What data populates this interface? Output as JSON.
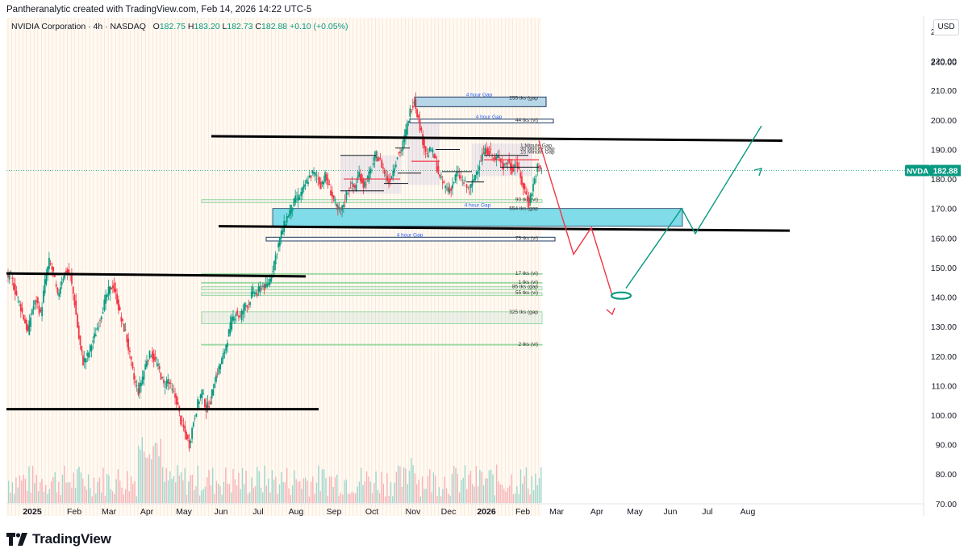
{
  "header": {
    "created_by": "Pantheranalytic created with TradingView.com, Feb 14, 2026 14:22 UTC-5",
    "symbol_line": "NVIDIA Corporation · 4h · NASDAQ",
    "ohlc": [
      {
        "label": "O",
        "value": "182.75"
      },
      {
        "label": "H",
        "value": "183.20"
      },
      {
        "label": "L",
        "value": "182.73"
      },
      {
        "label": "C",
        "value": "182.88"
      }
    ],
    "change": "+0.10 (+0.05%)",
    "currency": "USD"
  },
  "price_tag": {
    "ticker": "NVDA",
    "price": "182.88"
  },
  "footer": {
    "brand": "TradingView"
  },
  "colors": {
    "up": "#089981",
    "down": "#f23645",
    "gap_fill": "#7fdce8",
    "gap_border": "#1e3a5f",
    "support_line": "#000000",
    "projection_down": "#f23645",
    "projection_up": "#089981",
    "price_line": "#089981",
    "tag_bg": "#089981"
  },
  "chart_data": {
    "type": "candlestick",
    "title": "",
    "y_ticks": [
      230,
      220,
      210,
      200,
      190,
      180,
      170,
      160,
      150,
      140,
      130,
      120,
      110,
      100,
      90,
      80,
      70
    ],
    "y_tick_labels": [
      "230.00",
      "220.00",
      "210.00",
      "200.00",
      "190.00",
      "180.00",
      "170.00",
      "160.00",
      "150.00",
      "140.00",
      "130.00",
      "120.00",
      "110.00",
      "100.00",
      "90.00",
      "80.00",
      "70.00",
      "240.00"
    ],
    "extra_tick": 240,
    "ylim": [
      64.5,
      233
    ],
    "x_labels": [
      "2025",
      "Feb",
      "Mar",
      "Apr",
      "May",
      "Jun",
      "Jul",
      "Aug",
      "Sep",
      "Oct",
      "Nov",
      "Dec",
      "2026",
      "Feb",
      "Mar",
      "Apr",
      "May",
      "Jun",
      "Jul",
      "Aug"
    ],
    "bold_x_labels": [
      "2025",
      "2026"
    ],
    "price_path": [
      [
        "2025-01",
        147
      ],
      [
        "2025-01",
        142
      ],
      [
        "2025-01",
        138
      ],
      [
        "2025-01",
        133
      ],
      [
        "2025-01",
        128
      ],
      [
        "2025-01",
        136
      ],
      [
        "2025-01",
        139
      ],
      [
        "2025-01",
        134
      ],
      [
        "2025-01",
        145
      ],
      [
        "2025-01",
        152
      ],
      [
        "2025-01",
        148
      ],
      [
        "2025-01",
        140
      ],
      [
        "2025-01",
        146
      ],
      [
        "2025-01",
        149
      ],
      [
        "2025-01",
        147
      ],
      [
        "2025-01",
        138
      ],
      [
        "2025-02",
        126
      ],
      [
        "2025-02",
        118
      ],
      [
        "2025-02",
        120
      ],
      [
        "2025-02",
        124
      ],
      [
        "2025-02",
        128
      ],
      [
        "2025-02",
        133
      ],
      [
        "2025-02",
        138
      ],
      [
        "2025-02",
        142
      ],
      [
        "2025-02",
        144
      ],
      [
        "2025-02",
        139
      ],
      [
        "2025-02",
        132
      ],
      [
        "2025-02",
        128
      ],
      [
        "2025-03",
        120
      ],
      [
        "2025-03",
        112
      ],
      [
        "2025-03",
        108
      ],
      [
        "2025-03",
        113
      ],
      [
        "2025-03",
        119
      ],
      [
        "2025-03",
        121
      ],
      [
        "2025-03",
        118
      ],
      [
        "2025-03",
        115
      ],
      [
        "2025-03",
        110
      ],
      [
        "2025-03",
        112
      ],
      [
        "2025-04",
        108
      ],
      [
        "2025-04",
        105
      ],
      [
        "2025-04",
        98
      ],
      [
        "2025-04",
        94
      ],
      [
        "2025-04",
        90
      ],
      [
        "2025-04",
        98
      ],
      [
        "2025-04",
        104
      ],
      [
        "2025-04",
        108
      ],
      [
        "2025-04",
        102
      ],
      [
        "2025-04",
        105
      ],
      [
        "2025-05",
        112
      ],
      [
        "2025-05",
        116
      ],
      [
        "2025-05",
        120
      ],
      [
        "2025-05",
        126
      ],
      [
        "2025-05",
        132
      ],
      [
        "2025-05",
        135
      ],
      [
        "2025-05",
        133
      ],
      [
        "2025-05",
        137
      ],
      [
        "2025-06",
        138
      ],
      [
        "2025-06",
        142
      ],
      [
        "2025-06",
        141
      ],
      [
        "2025-06",
        144
      ],
      [
        "2025-06",
        143
      ],
      [
        "2025-06",
        146
      ],
      [
        "2025-07",
        152
      ],
      [
        "2025-07",
        158
      ],
      [
        "2025-07",
        163
      ],
      [
        "2025-07",
        167
      ],
      [
        "2025-07",
        170
      ],
      [
        "2025-07",
        173
      ],
      [
        "2025-07",
        174
      ],
      [
        "2025-08",
        177
      ],
      [
        "2025-08",
        180
      ],
      [
        "2025-08",
        182
      ],
      [
        "2025-08",
        181
      ],
      [
        "2025-08",
        178
      ],
      [
        "2025-08",
        181
      ],
      [
        "2025-08",
        177
      ],
      [
        "2025-08",
        173
      ],
      [
        "2025-09",
        169
      ],
      [
        "2025-09",
        170
      ],
      [
        "2025-09",
        175
      ],
      [
        "2025-09",
        178
      ],
      [
        "2025-09",
        177
      ],
      [
        "2025-09",
        182
      ],
      [
        "2025-09",
        178
      ],
      [
        "2025-09",
        180
      ],
      [
        "2025-10",
        184
      ],
      [
        "2025-10",
        188
      ],
      [
        "2025-10",
        186
      ],
      [
        "2025-10",
        182
      ],
      [
        "2025-10",
        179
      ],
      [
        "2025-10",
        183
      ],
      [
        "2025-10",
        188
      ],
      [
        "2025-10",
        190
      ],
      [
        "2025-10",
        196
      ],
      [
        "2025-11",
        203
      ],
      [
        "2025-11",
        207
      ],
      [
        "2025-11",
        200
      ],
      [
        "2025-11",
        193
      ],
      [
        "2025-11",
        188
      ],
      [
        "2025-11",
        190
      ],
      [
        "2025-11",
        186
      ],
      [
        "2025-11",
        180
      ],
      [
        "2025-11",
        178
      ],
      [
        "2025-11",
        176
      ],
      [
        "2025-12",
        178
      ],
      [
        "2025-12",
        182
      ],
      [
        "2025-12",
        180
      ],
      [
        "2025-12",
        178
      ],
      [
        "2025-12",
        176
      ],
      [
        "2025-12",
        180
      ],
      [
        "2025-12",
        184
      ],
      [
        "2025-12",
        188
      ],
      [
        "2025-12",
        190
      ],
      [
        "2026-01",
        189
      ],
      [
        "2026-01",
        186
      ],
      [
        "2026-01",
        188
      ],
      [
        "2026-01",
        184
      ],
      [
        "2026-01",
        186
      ],
      [
        "2026-01",
        183
      ],
      [
        "2026-01",
        186
      ],
      [
        "2026-02",
        180
      ],
      [
        "2026-02",
        176
      ],
      [
        "2026-02",
        172
      ],
      [
        "2026-02",
        178
      ],
      [
        "2026-02",
        184
      ],
      [
        "2026-02",
        182.88
      ]
    ],
    "support_lines": [
      {
        "from": "2025-06",
        "to": "2026-07",
        "from_price": 194.5,
        "to_price": 193
      },
      {
        "from": "2025-06",
        "to": "2026-08",
        "from_price": 164,
        "to_price": 162.5
      },
      {
        "from": "2025-01",
        "to": "2025-08",
        "from_price": 148,
        "to_price": 147
      },
      {
        "from": "2025-01",
        "to": "2025-08",
        "from_price": 102,
        "to_price": 102
      }
    ],
    "gap_zones": [
      {
        "label": "4 hour Gap",
        "note": "255 tks (gap",
        "low": 204.5,
        "high": 207.5,
        "style": "dark"
      },
      {
        "label": "4 hour Gap",
        "note": "44 tks (vi)",
        "low": 199,
        "high": 200,
        "style": "dark"
      },
      {
        "label": "4 hour Gap",
        "note": "654 tks (gap",
        "low": 164,
        "high": 170,
        "style": "filled"
      },
      {
        "label": "4 hour Gap",
        "note": "75 tks (vi)",
        "low": 159,
        "high": 160,
        "style": "dark"
      },
      {
        "label": "",
        "note": "90 tks (vi)",
        "low": 172,
        "high": 173,
        "style": "line"
      },
      {
        "label": "",
        "note": "17 tks (vi)",
        "low": 148,
        "high": 148,
        "style": "line"
      },
      {
        "label": "",
        "note": "1 tks (vi)",
        "low": 145,
        "high": 145,
        "style": "line"
      },
      {
        "label": "",
        "note": "85 tks (gap",
        "low": 142.5,
        "high": 143.5,
        "style": "line"
      },
      {
        "label": "",
        "note": "55 tks (vi)",
        "low": 140.5,
        "high": 141.5,
        "style": "line"
      },
      {
        "label": "",
        "note": "325 tks (gap",
        "low": 131,
        "high": 135,
        "style": "line"
      },
      {
        "label": "",
        "note": "2 tks (vi)",
        "low": 124,
        "high": 124,
        "style": "line"
      }
    ],
    "stacked_labels": [
      "1 Minute Gap",
      "30 Minute Gap",
      "15 Minute Gap"
    ],
    "projection": {
      "down_path": [
        [
          182.88,
          "2026-02"
        ],
        [
          155,
          "2026-03"
        ],
        [
          163,
          "2026-03"
        ],
        [
          140,
          "2026-04"
        ]
      ],
      "up_path": [
        [
          142,
          "2026-04"
        ],
        [
          170,
          "2026-06"
        ],
        [
          162,
          "2026-06"
        ],
        [
          198,
          "2026-08"
        ]
      ],
      "target_ellipse_price": 140.5
    }
  }
}
